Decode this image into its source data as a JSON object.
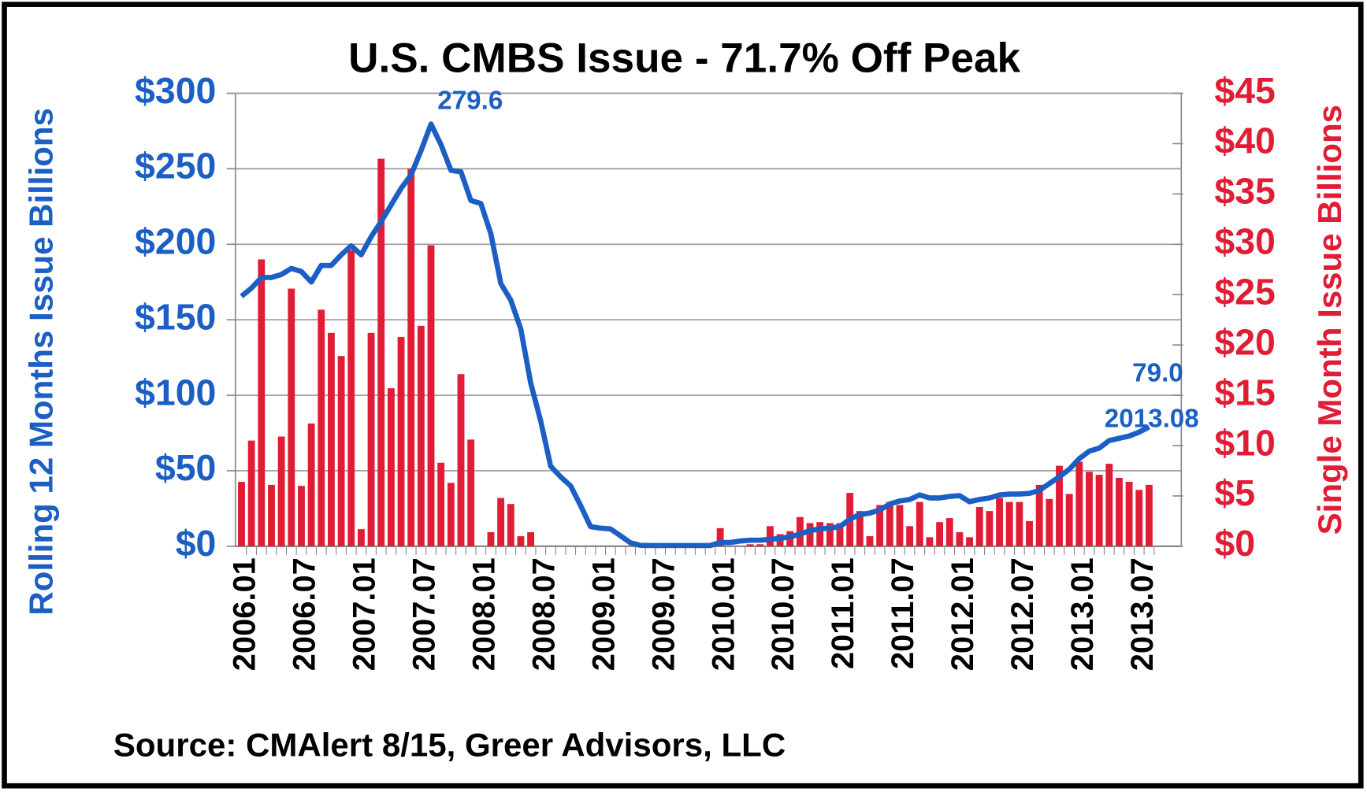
{
  "chart_data": {
    "type": "combo",
    "title": "U.S. CMBS Issue - 71.7% Off Peak",
    "source": "Source: CMAlert  8/15, Greer Advisors, LLC",
    "y_label": "Rolling 12 Months Issue Billions",
    "y2_label": "Single Month Issue Billions",
    "categories": [
      "2006.01",
      null,
      null,
      null,
      null,
      null,
      "2006.07",
      null,
      null,
      null,
      null,
      null,
      "2007.01",
      null,
      null,
      null,
      null,
      null,
      "2007.07",
      null,
      null,
      null,
      null,
      null,
      "2008.01",
      null,
      null,
      null,
      null,
      null,
      "2008.07",
      null,
      null,
      null,
      null,
      null,
      "2009.01",
      null,
      null,
      null,
      null,
      null,
      "2009.07",
      null,
      null,
      null,
      null,
      null,
      "2010.01",
      null,
      null,
      null,
      null,
      null,
      "2010.07",
      null,
      null,
      null,
      null,
      null,
      "2011.01",
      null,
      null,
      null,
      null,
      null,
      "2011.07",
      null,
      null,
      null,
      null,
      null,
      "2012.01",
      null,
      null,
      null,
      null,
      null,
      "2012.07",
      null,
      null,
      null,
      null,
      null,
      "2013.01",
      null,
      null,
      null,
      null,
      null,
      "2013.07",
      null
    ],
    "series": [
      {
        "type": "bar",
        "axis": "y2",
        "color": "#e11d35",
        "values": [
          6.4,
          10.5,
          28.5,
          6.1,
          10.9,
          25.6,
          6.0,
          12.2,
          23.5,
          21.2,
          18.9,
          29.4,
          1.7,
          21.2,
          38.5,
          15.7,
          20.8,
          37.5,
          21.9,
          29.9,
          8.3,
          6.3,
          17.1,
          10.6,
          0,
          1.4,
          4.8,
          4.2,
          1.0,
          1.4,
          0,
          0,
          0,
          0,
          0,
          0,
          0,
          0,
          0,
          0,
          0,
          0.3,
          0.3,
          0,
          0,
          0,
          0,
          0,
          1.8,
          0,
          0,
          0.2,
          0.2,
          2.0,
          1.2,
          1.5,
          2.9,
          2.3,
          2.4,
          2.3,
          2.3,
          5.3,
          3.5,
          1.0,
          4.1,
          4.4,
          4.1,
          2.0,
          4.4,
          0.9,
          2.4,
          2.8,
          1.4,
          0.9,
          3.9,
          3.5,
          4.8,
          4.4,
          4.4,
          2.5,
          6.1,
          4.7,
          8.0,
          5.2,
          8.4,
          7.4,
          7.1,
          8.2,
          6.8,
          6.4,
          5.6,
          6.1
        ]
      },
      {
        "type": "line",
        "axis": "y",
        "color": "#1c5fc4",
        "values": [
          165.6,
          171,
          178,
          178,
          180,
          184,
          182,
          175,
          186,
          186,
          193,
          199,
          193,
          205,
          215,
          226,
          237,
          246,
          262,
          279.6,
          266,
          249,
          248,
          229,
          227,
          207,
          174,
          163,
          144,
          108,
          83,
          53,
          46,
          40,
          27,
          13,
          12,
          11.5,
          7,
          2.3,
          0.6,
          0.5,
          0.5,
          0.5,
          0.5,
          0.5,
          0.5,
          0.5,
          2.5,
          2.5,
          3.5,
          4,
          4,
          4.6,
          5.2,
          6.3,
          8,
          10.4,
          11.5,
          12,
          13,
          18,
          21,
          22,
          24,
          28,
          30,
          31,
          34,
          32,
          32,
          33,
          33.5,
          29.5,
          31,
          32,
          34,
          34.6,
          34.6,
          35,
          37,
          41.5,
          46,
          51,
          58,
          63,
          65,
          70,
          71.5,
          73,
          75.6,
          79
        ],
        "value_labels": [
          null,
          null,
          null,
          null,
          null,
          null,
          null,
          null,
          null,
          null,
          null,
          null,
          null,
          null,
          null,
          null,
          null,
          null,
          null,
          "279.6",
          null,
          null,
          null,
          null,
          null,
          null,
          null,
          null,
          null,
          null,
          null,
          null,
          null,
          null,
          null,
          null,
          null,
          null,
          null,
          null,
          null,
          null,
          null,
          null,
          null,
          null,
          null,
          null,
          null,
          null,
          null,
          null,
          null,
          null,
          null,
          null,
          null,
          null,
          null,
          null,
          null,
          null,
          null,
          null,
          null,
          null,
          null,
          null,
          null,
          null,
          null,
          null,
          null,
          null,
          null,
          null,
          null,
          null,
          null,
          null,
          null,
          null,
          null,
          null,
          null,
          null,
          null,
          null,
          null,
          null,
          null,
          "79.0"
        ]
      }
    ],
    "annotations": [
      "2013.08"
    ],
    "ylim": [
      0,
      300
    ],
    "yticks": [
      {
        "value": 0,
        "label": "$0"
      },
      {
        "value": 50,
        "label": "$50"
      },
      {
        "value": 100,
        "label": "$100"
      },
      {
        "value": 150,
        "label": "$150"
      },
      {
        "value": 200,
        "label": "$200"
      },
      {
        "value": 250,
        "label": "$250"
      },
      {
        "value": 300,
        "label": "$300"
      }
    ],
    "y2lim": [
      0,
      45
    ],
    "y2ticks": [
      {
        "value": 0,
        "label": "$0"
      },
      {
        "value": 5,
        "label": "$5"
      },
      {
        "value": 10,
        "label": "$10"
      },
      {
        "value": 15,
        "label": "$15"
      },
      {
        "value": 20,
        "label": "$20"
      },
      {
        "value": 25,
        "label": "$25"
      },
      {
        "value": 30,
        "label": "$30"
      },
      {
        "value": 35,
        "label": "$35"
      },
      {
        "value": 40,
        "label": "$40"
      },
      {
        "value": 45,
        "label": "$45"
      }
    ],
    "grid": true,
    "y_color": "#1c5fc4",
    "y2_color": "#e11d35"
  }
}
